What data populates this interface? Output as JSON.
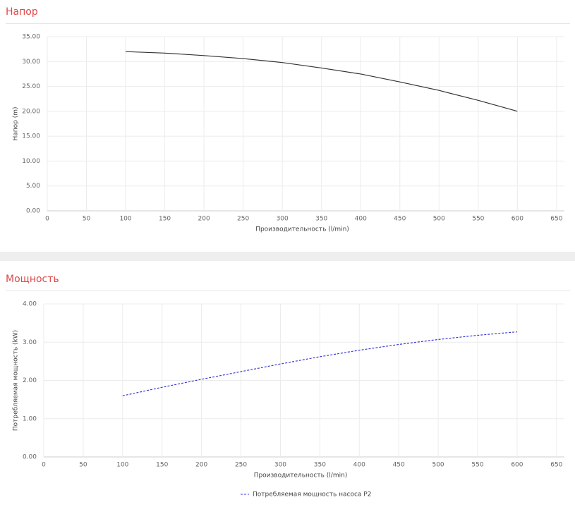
{
  "chart_data": [
    {
      "type": "line",
      "title": "Напор",
      "x_label": "Производительность (l/min)",
      "y_label": "Напор (m)",
      "x": [
        100,
        150,
        200,
        250,
        300,
        350,
        400,
        450,
        500,
        550,
        600
      ],
      "values": [
        32.0,
        31.7,
        31.2,
        30.6,
        29.8,
        28.7,
        27.5,
        25.9,
        24.2,
        22.2,
        20.0
      ],
      "color": "#333333",
      "xlim": [
        0,
        660
      ],
      "xticks": [
        0,
        50,
        100,
        150,
        200,
        250,
        300,
        350,
        400,
        450,
        500,
        550,
        600,
        650
      ],
      "ylim": [
        0,
        35
      ],
      "yticks": [
        {
          "value": 0,
          "label": "0.00"
        },
        {
          "value": 5,
          "label": "5.00"
        },
        {
          "value": 10,
          "label": "10.00"
        },
        {
          "value": 15,
          "label": "15.00"
        },
        {
          "value": 20,
          "label": "20.00"
        },
        {
          "value": 25,
          "label": "25.00"
        },
        {
          "value": 30,
          "label": "30.00"
        },
        {
          "value": 35,
          "label": "35.00"
        }
      ],
      "grid": true
    },
    {
      "type": "line",
      "title": "Мощность",
      "x_label": "Производительность (l/min)",
      "y_label": "Потребляемая мощность (kW)",
      "x": [
        100,
        150,
        200,
        250,
        300,
        350,
        400,
        450,
        500,
        550,
        600
      ],
      "series": [
        {
          "name": "Потребляемая мощность насоса P2",
          "color": "#3b3bd6",
          "dashed": true,
          "values": [
            1.6,
            1.82,
            2.03,
            2.23,
            2.43,
            2.62,
            2.79,
            2.94,
            3.07,
            3.18,
            3.27
          ]
        }
      ],
      "xlim": [
        0,
        660
      ],
      "xticks": [
        0,
        50,
        100,
        150,
        200,
        250,
        300,
        350,
        400,
        450,
        500,
        550,
        600,
        650
      ],
      "ylim": [
        0,
        4
      ],
      "yticks": [
        {
          "value": 0,
          "label": "0.00"
        },
        {
          "value": 1,
          "label": "1.00"
        },
        {
          "value": 2,
          "label": "2.00"
        },
        {
          "value": 3,
          "label": "3.00"
        },
        {
          "value": 4,
          "label": "4.00"
        }
      ],
      "grid": true,
      "legend": "bottom"
    }
  ]
}
